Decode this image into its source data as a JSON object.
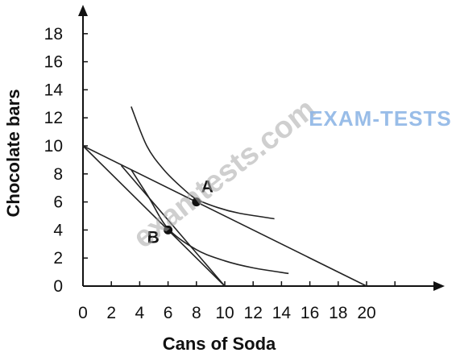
{
  "chart_data": {
    "type": "line",
    "title": "",
    "xlabel": "Cans of Soda",
    "ylabel": "Chocolate bars",
    "xlim": [
      0,
      22
    ],
    "ylim": [
      0,
      19
    ],
    "x_ticks": [
      "0",
      "2",
      "4",
      "6",
      "8",
      "10",
      "12",
      "14",
      "16",
      "18",
      "20"
    ],
    "y_ticks": [
      "0",
      "2",
      "4",
      "6",
      "8",
      "10",
      "12",
      "14",
      "16",
      "18"
    ],
    "grid": false,
    "series": [
      {
        "kind": "budget_line",
        "points": [
          [
            0,
            10
          ],
          [
            20,
            0
          ]
        ]
      },
      {
        "kind": "budget_line",
        "points": [
          [
            0,
            10
          ],
          [
            10,
            0
          ]
        ]
      },
      {
        "kind": "budget_line",
        "points": [
          [
            2.7,
            8.6
          ],
          [
            10,
            0
          ]
        ]
      },
      {
        "kind": "indifference_curve",
        "points": [
          [
            3.4,
            12.8
          ],
          [
            4.5,
            10
          ],
          [
            5.7,
            8.3
          ],
          [
            7,
            7
          ],
          [
            8,
            6.2
          ],
          [
            9.5,
            5.6
          ],
          [
            11,
            5.2
          ],
          [
            13.5,
            4.8
          ]
        ]
      },
      {
        "kind": "indifference_curve",
        "points": [
          [
            3.4,
            8.3
          ],
          [
            4.6,
            6.4
          ],
          [
            6,
            4.1
          ],
          [
            8,
            2.6
          ],
          [
            10,
            1.8
          ],
          [
            12,
            1.3
          ],
          [
            14.5,
            0.9
          ]
        ]
      }
    ],
    "points": [
      {
        "label": "A",
        "x": 8,
        "y": 6
      },
      {
        "label": "B",
        "x": 6,
        "y": 4
      }
    ]
  },
  "watermark": {
    "text": "examtests.com",
    "brand": "EXAM-TESTS"
  }
}
